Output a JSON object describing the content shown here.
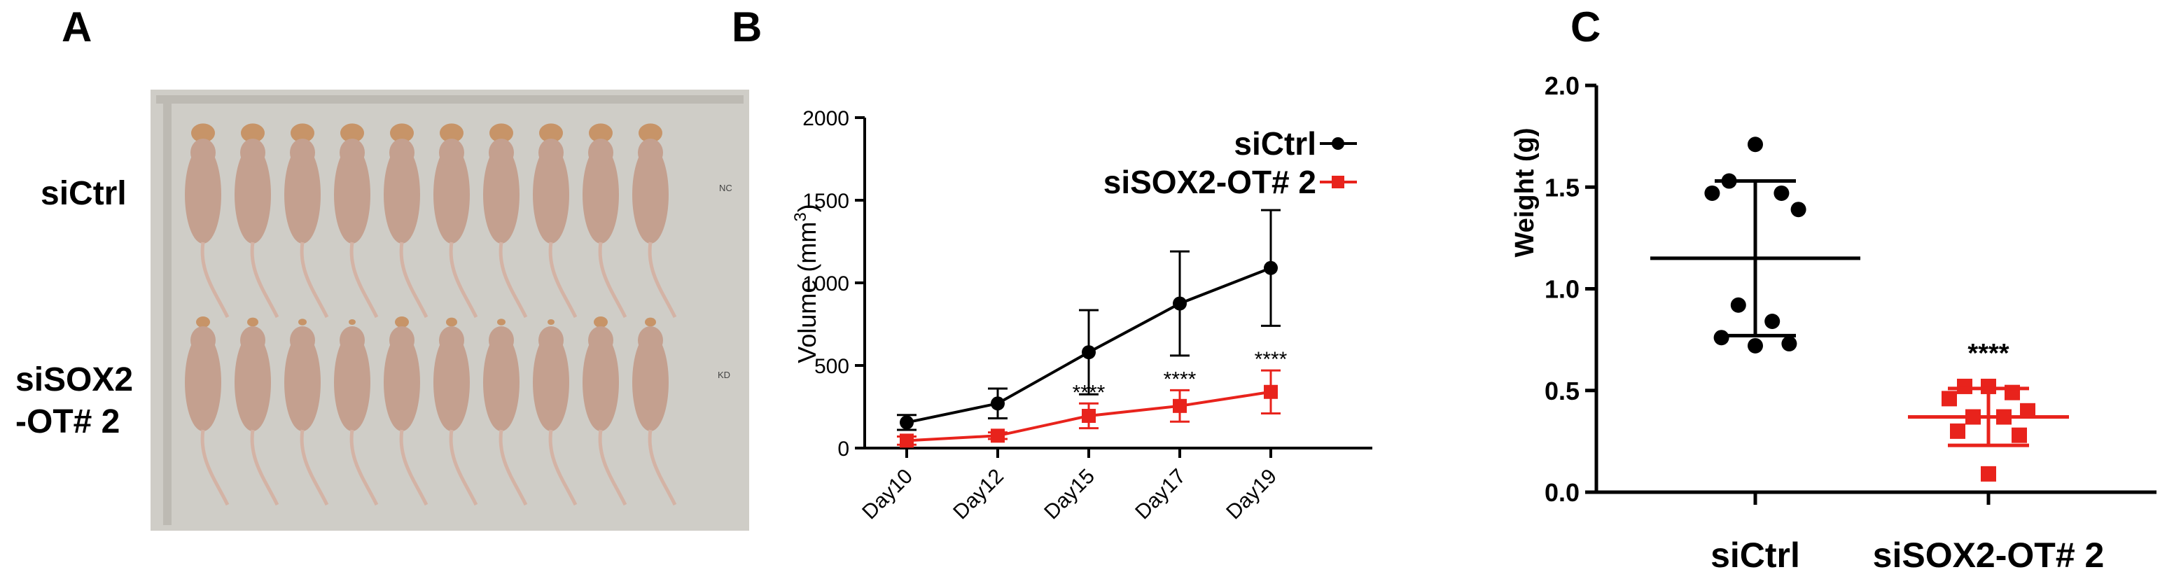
{
  "panels": {
    "a": {
      "letter": "A",
      "row_labels": [
        "siCtrl",
        "siSOX2",
        "-OT# 2"
      ],
      "photo_labels": {
        "top": "NC",
        "bottom": "KD"
      },
      "mice_per_row": 10,
      "colors": {
        "background": "#cfcdc7",
        "mouse": "#c4a08f",
        "tumor": "#c79468"
      }
    },
    "b": {
      "letter": "B"
    },
    "c": {
      "letter": "C"
    }
  },
  "chart_data": [
    {
      "id": "B",
      "type": "line",
      "title": "",
      "xlabel": "",
      "ylabel": "Volume (mm",
      "ylabel_superscript": "3",
      "ylabel_suffix": ")",
      "categories": [
        "Day10",
        "Day12",
        "Day15",
        "Day17",
        "Day19"
      ],
      "ylim": [
        0,
        2000
      ],
      "yticks": [
        "0",
        "500",
        "1000",
        "1500",
        "2000"
      ],
      "series": [
        {
          "name": "siCtrl",
          "color": "#000000",
          "marker": "circle",
          "values": [
            155,
            270,
            580,
            875,
            1090
          ],
          "errors": [
            45,
            90,
            255,
            315,
            350
          ]
        },
        {
          "name": "siSOX2-OT# 2",
          "color": "#e8231c",
          "marker": "square",
          "values": [
            45,
            75,
            195,
            255,
            340
          ],
          "errors": [
            25,
            20,
            75,
            95,
            130
          ]
        }
      ],
      "annotations": [
        "****",
        "****",
        "****"
      ],
      "annotation_categories": [
        "Day15",
        "Day17",
        "Day19"
      ],
      "legend_position": "top-right"
    },
    {
      "id": "C",
      "type": "scatter",
      "title": "",
      "xlabel": "",
      "ylabel": "Weight (g)",
      "ylim": [
        0,
        2.0
      ],
      "yticks": [
        "0.0",
        "0.5",
        "1.0",
        "1.5",
        "2.0"
      ],
      "categories": [
        "siCtrl",
        "siSOX2-OT# 2"
      ],
      "series": [
        {
          "name": "siCtrl",
          "color": "#000000",
          "marker": "circle",
          "values": [
            1.71,
            1.53,
            1.47,
            1.47,
            1.39,
            0.92,
            0.84,
            0.76,
            0.73,
            0.72
          ],
          "mean": 1.15,
          "sd_upper": 1.53,
          "sd_lower": 0.77
        },
        {
          "name": "siSOX2-OT# 2",
          "color": "#e8231c",
          "marker": "square",
          "values": [
            0.52,
            0.52,
            0.49,
            0.46,
            0.4,
            0.37,
            0.37,
            0.3,
            0.28,
            0.09
          ],
          "mean": 0.37,
          "sd_upper": 0.51,
          "sd_lower": 0.23
        }
      ],
      "annotation": "****"
    }
  ]
}
